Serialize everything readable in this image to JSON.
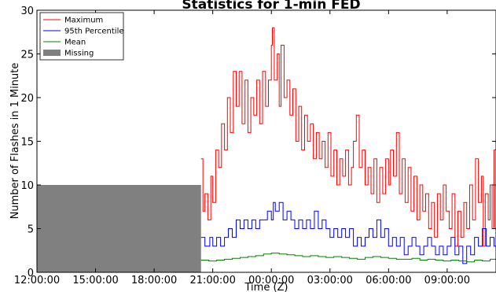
{
  "chart_data": {
    "type": "line",
    "title": "Statistics for 1-min FED",
    "xlabel": "Time (Z)",
    "ylabel": "Number of Flashes in 1 Minute",
    "ylim": [
      0,
      30
    ],
    "yticks": [
      "0",
      "5",
      "10",
      "15",
      "20",
      "25",
      "30"
    ],
    "xticks": [
      "12:00:00",
      "15:00:00",
      "18:00:00",
      "21:00:00",
      "00:00:00",
      "03:00:00",
      "06:00:00",
      "09:00:00"
    ],
    "xlim_hours": [
      12,
      35.5
    ],
    "grid": false,
    "legend_position": "top-left",
    "missing": {
      "name": "Missing",
      "start_hour": 12,
      "end_hour": 20.4,
      "value": 10,
      "color": "#808080"
    },
    "series": [
      {
        "name": "Maximum",
        "color": "#ff0000",
        "points": [
          [
            20.4,
            13
          ],
          [
            20.5,
            7
          ],
          [
            20.6,
            9
          ],
          [
            20.75,
            6
          ],
          [
            20.9,
            11
          ],
          [
            21.0,
            8
          ],
          [
            21.15,
            14
          ],
          [
            21.3,
            12
          ],
          [
            21.45,
            17
          ],
          [
            21.6,
            14
          ],
          [
            21.75,
            20
          ],
          [
            21.9,
            16
          ],
          [
            22.05,
            23
          ],
          [
            22.2,
            19
          ],
          [
            22.35,
            23
          ],
          [
            22.5,
            17
          ],
          [
            22.65,
            22
          ],
          [
            22.8,
            16
          ],
          [
            22.95,
            20
          ],
          [
            23.1,
            18
          ],
          [
            23.25,
            22
          ],
          [
            23.4,
            17
          ],
          [
            23.55,
            23
          ],
          [
            23.7,
            19
          ],
          [
            23.85,
            22
          ],
          [
            24.0,
            26
          ],
          [
            24.05,
            28
          ],
          [
            24.15,
            22
          ],
          [
            24.3,
            25
          ],
          [
            24.4,
            19
          ],
          [
            24.5,
            26
          ],
          [
            24.65,
            20
          ],
          [
            24.8,
            22
          ],
          [
            24.95,
            18
          ],
          [
            25.1,
            21
          ],
          [
            25.25,
            15
          ],
          [
            25.4,
            19
          ],
          [
            25.55,
            14
          ],
          [
            25.7,
            18
          ],
          [
            25.85,
            15
          ],
          [
            26.0,
            17
          ],
          [
            26.15,
            13
          ],
          [
            26.3,
            16
          ],
          [
            26.45,
            13
          ],
          [
            26.6,
            15
          ],
          [
            26.75,
            12
          ],
          [
            26.9,
            16
          ],
          [
            27.05,
            11
          ],
          [
            27.2,
            14
          ],
          [
            27.35,
            10
          ],
          [
            27.5,
            13
          ],
          [
            27.65,
            11
          ],
          [
            27.8,
            14
          ],
          [
            27.95,
            10
          ],
          [
            28.1,
            12
          ],
          [
            28.2,
            15
          ],
          [
            28.35,
            18
          ],
          [
            28.5,
            12
          ],
          [
            28.65,
            14
          ],
          [
            28.8,
            10
          ],
          [
            28.95,
            12
          ],
          [
            29.1,
            9
          ],
          [
            29.25,
            13
          ],
          [
            29.4,
            8
          ],
          [
            29.55,
            12
          ],
          [
            29.7,
            9
          ],
          [
            29.85,
            13
          ],
          [
            30.0,
            10
          ],
          [
            30.1,
            14
          ],
          [
            30.25,
            11
          ],
          [
            30.4,
            16
          ],
          [
            30.55,
            9
          ],
          [
            30.7,
            13
          ],
          [
            30.85,
            8
          ],
          [
            31.0,
            12
          ],
          [
            31.15,
            7
          ],
          [
            31.3,
            11
          ],
          [
            31.45,
            6
          ],
          [
            31.6,
            10
          ],
          [
            31.75,
            7
          ],
          [
            31.9,
            9
          ],
          [
            32.05,
            5
          ],
          [
            32.2,
            8
          ],
          [
            32.35,
            4
          ],
          [
            32.5,
            9
          ],
          [
            32.65,
            6
          ],
          [
            32.8,
            10
          ],
          [
            32.95,
            7
          ],
          [
            33.1,
            5
          ],
          [
            33.25,
            9
          ],
          [
            33.4,
            3
          ],
          [
            33.55,
            7
          ],
          [
            33.7,
            4
          ],
          [
            33.85,
            8
          ],
          [
            34.0,
            5
          ],
          [
            34.15,
            10
          ],
          [
            34.3,
            6
          ],
          [
            34.45,
            13
          ],
          [
            34.6,
            8
          ],
          [
            34.75,
            11
          ],
          [
            34.85,
            3
          ],
          [
            34.95,
            9
          ],
          [
            35.1,
            6
          ],
          [
            35.2,
            10
          ],
          [
            35.3,
            5
          ],
          [
            35.4,
            14
          ],
          [
            35.5,
            12
          ]
        ]
      },
      {
        "name": "95th Percentile",
        "color": "#0000ff",
        "points": [
          [
            20.4,
            4
          ],
          [
            20.6,
            3
          ],
          [
            20.8,
            3
          ],
          [
            20.85,
            4
          ],
          [
            21.0,
            3
          ],
          [
            21.2,
            4
          ],
          [
            21.4,
            3
          ],
          [
            21.6,
            4
          ],
          [
            21.8,
            5
          ],
          [
            22.0,
            4
          ],
          [
            22.2,
            6
          ],
          [
            22.4,
            5
          ],
          [
            22.6,
            6
          ],
          [
            22.8,
            5
          ],
          [
            23.0,
            6
          ],
          [
            23.2,
            5
          ],
          [
            23.4,
            6
          ],
          [
            23.6,
            6
          ],
          [
            23.8,
            7
          ],
          [
            24.0,
            6
          ],
          [
            24.1,
            8
          ],
          [
            24.2,
            7
          ],
          [
            24.4,
            8
          ],
          [
            24.6,
            6
          ],
          [
            24.8,
            7
          ],
          [
            25.0,
            6
          ],
          [
            25.2,
            5
          ],
          [
            25.4,
            6
          ],
          [
            25.6,
            5
          ],
          [
            25.8,
            6
          ],
          [
            26.0,
            5
          ],
          [
            26.2,
            7
          ],
          [
            26.4,
            5
          ],
          [
            26.6,
            6
          ],
          [
            26.8,
            5
          ],
          [
            27.0,
            4
          ],
          [
            27.2,
            5
          ],
          [
            27.4,
            4
          ],
          [
            27.6,
            5
          ],
          [
            27.8,
            4
          ],
          [
            28.0,
            5
          ],
          [
            28.2,
            3
          ],
          [
            28.4,
            4
          ],
          [
            28.6,
            3
          ],
          [
            28.8,
            4
          ],
          [
            29.0,
            5
          ],
          [
            29.2,
            4
          ],
          [
            29.4,
            6
          ],
          [
            29.6,
            4
          ],
          [
            29.8,
            5
          ],
          [
            30.0,
            3
          ],
          [
            30.2,
            4
          ],
          [
            30.4,
            3
          ],
          [
            30.6,
            4
          ],
          [
            30.8,
            2
          ],
          [
            31.0,
            3
          ],
          [
            31.2,
            4
          ],
          [
            31.4,
            3
          ],
          [
            31.6,
            2
          ],
          [
            31.8,
            3
          ],
          [
            32.0,
            4
          ],
          [
            32.2,
            3
          ],
          [
            32.4,
            2
          ],
          [
            32.6,
            3
          ],
          [
            32.8,
            2
          ],
          [
            33.0,
            3
          ],
          [
            33.2,
            4
          ],
          [
            33.4,
            2
          ],
          [
            33.6,
            3
          ],
          [
            33.8,
            1
          ],
          [
            34.0,
            3
          ],
          [
            34.2,
            2
          ],
          [
            34.4,
            4
          ],
          [
            34.6,
            3
          ],
          [
            34.8,
            5
          ],
          [
            35.0,
            3
          ],
          [
            35.2,
            4
          ],
          [
            35.4,
            3
          ],
          [
            35.5,
            4
          ]
        ]
      },
      {
        "name": "Mean",
        "color": "#008000",
        "points": [
          [
            20.4,
            1.4
          ],
          [
            20.8,
            1.3
          ],
          [
            21.2,
            1.4
          ],
          [
            21.6,
            1.5
          ],
          [
            22.0,
            1.6
          ],
          [
            22.4,
            1.7
          ],
          [
            22.8,
            1.8
          ],
          [
            23.2,
            1.9
          ],
          [
            23.6,
            2.1
          ],
          [
            24.0,
            2.2
          ],
          [
            24.4,
            2.1
          ],
          [
            24.8,
            2.0
          ],
          [
            25.2,
            1.9
          ],
          [
            25.6,
            1.8
          ],
          [
            26.0,
            1.9
          ],
          [
            26.4,
            1.8
          ],
          [
            26.8,
            1.7
          ],
          [
            27.2,
            1.8
          ],
          [
            27.6,
            1.7
          ],
          [
            28.0,
            1.6
          ],
          [
            28.4,
            1.5
          ],
          [
            28.8,
            1.7
          ],
          [
            29.2,
            1.8
          ],
          [
            29.6,
            1.7
          ],
          [
            30.0,
            1.6
          ],
          [
            30.4,
            1.5
          ],
          [
            30.8,
            1.5
          ],
          [
            31.2,
            1.6
          ],
          [
            31.6,
            1.4
          ],
          [
            32.0,
            1.5
          ],
          [
            32.4,
            1.4
          ],
          [
            32.8,
            1.3
          ],
          [
            33.2,
            1.4
          ],
          [
            33.6,
            1.3
          ],
          [
            34.0,
            1.2
          ],
          [
            34.4,
            1.4
          ],
          [
            34.8,
            1.3
          ],
          [
            35.2,
            1.5
          ],
          [
            35.5,
            1.6
          ]
        ]
      }
    ]
  }
}
